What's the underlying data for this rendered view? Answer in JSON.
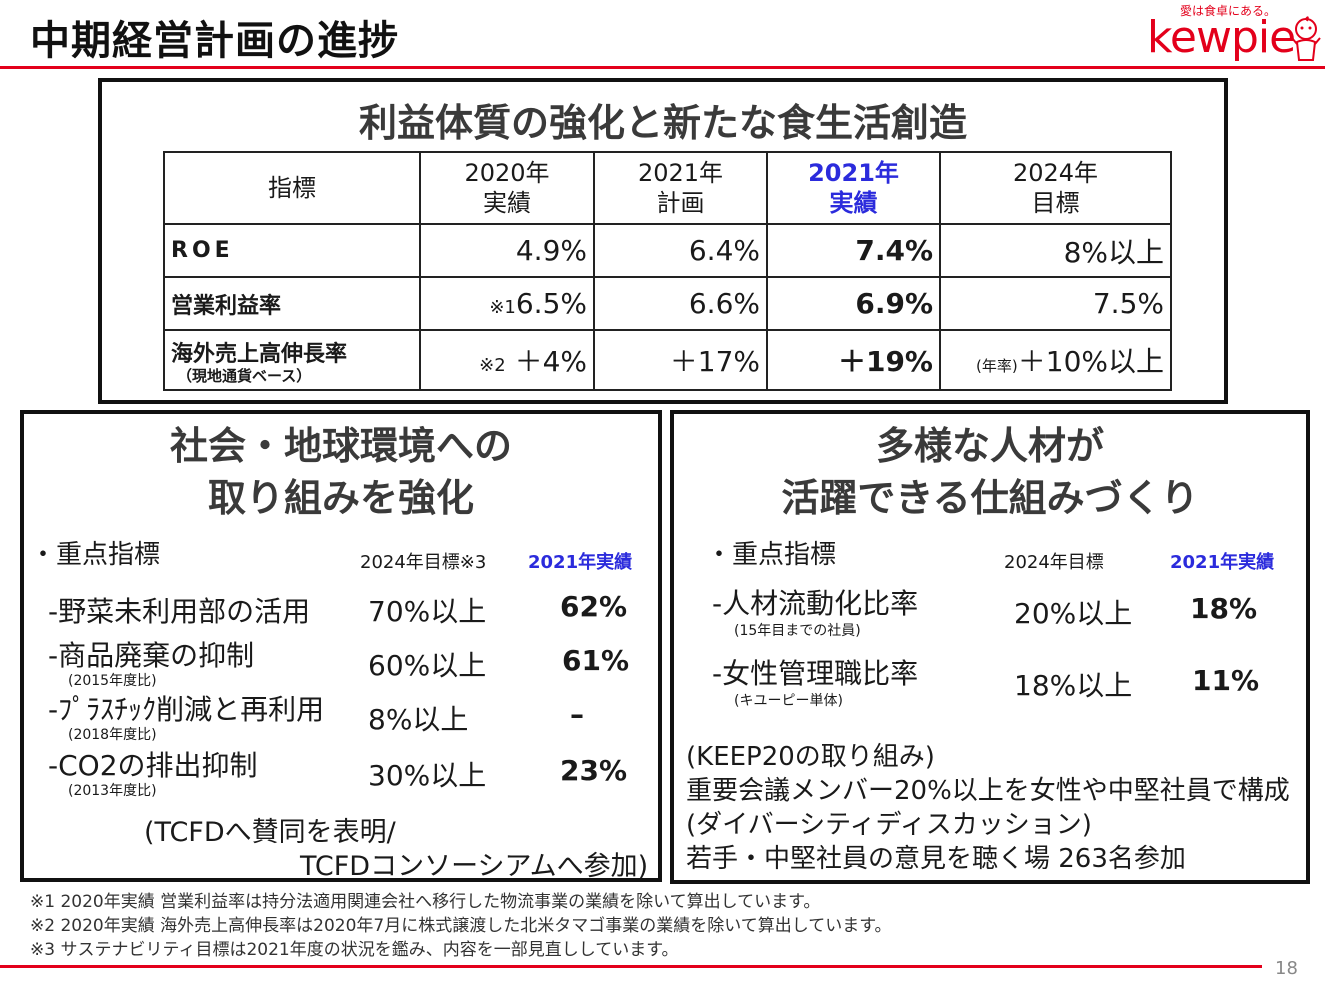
{
  "page_title": "中期経営計画の進捗",
  "logo": {
    "tagline": "愛は食卓にある。",
    "wordmark": "kewpie"
  },
  "top": {
    "heading": "利益体質の強化と新たな食生活創造",
    "headers": {
      "indicator": "指標",
      "c1_line1": "2020年",
      "c1_line2": "実績",
      "c2_line1": "2021年",
      "c2_line2": "計画",
      "c3_line1": "2021年",
      "c3_line2": "実績",
      "c4_line1": "2024年",
      "c4_line2": "目標"
    },
    "rows": [
      {
        "label": "ROE",
        "sublabel": "",
        "prefix": "",
        "v1": "4.9%",
        "v2": "6.4%",
        "v3": "7.4%",
        "v4_prefix": "",
        "v4": "8%以上"
      },
      {
        "label": "営業利益率",
        "sublabel": "",
        "prefix": "※1",
        "v1": "6.5%",
        "v2": "6.6%",
        "v3": "6.9%",
        "v4_prefix": "",
        "v4": "7.5%"
      },
      {
        "label": "海外売上高伸長率",
        "sublabel": "（現地通貨ベース）",
        "prefix": "※2",
        "v1": "＋4%",
        "v2": "＋17%",
        "v3": "＋19%",
        "v4_prefix": "(年率)",
        "v4": "＋10%以上"
      }
    ],
    "accent_color": "#2b2bdc"
  },
  "left": {
    "heading_line1": "社会・地球環境への",
    "heading_line2": "取り組みを強化",
    "bullet": "・重点指標",
    "col_target": "2024年目標※3",
    "col_actual": "2021年実績",
    "items": [
      {
        "label": "-野菜未利用部の活用",
        "note": "",
        "target": "70%以上",
        "actual": "62%"
      },
      {
        "label": "-商品廃棄の抑制",
        "note": "(2015年度比)",
        "target": "60%以上",
        "actual": "61%"
      },
      {
        "label": "-ﾌﾟﾗｽﾁｯｸ削減と再利用",
        "note": "(2018年度比)",
        "target": "8%以上",
        "actual": "–"
      },
      {
        "label": "-CO2の排出抑制",
        "note": "(2013年度比)",
        "target": "30%以上",
        "actual": "23%"
      }
    ],
    "tcfd_line1": "(TCFDへ賛同を表明/",
    "tcfd_line2": "TCFDコンソーシアムへ参加)"
  },
  "right": {
    "heading_line1": "多様な人材が",
    "heading_line2": "活躍できる仕組みづくり",
    "bullet": "・重点指標",
    "col_target": "2024年目標",
    "col_actual": "2021年実績",
    "items": [
      {
        "label": "-人材流動化比率",
        "note": "(15年目までの社員)",
        "target": "20%以上",
        "actual": "18%"
      },
      {
        "label": "-女性管理職比率",
        "note": "(キユーピー単体)",
        "target": "18%以上",
        "actual": "11%"
      }
    ],
    "keep_lines": [
      "(KEEP20の取り組み)",
      "重要会議メンバー20%以上を女性や中堅社員で構成",
      "(ダイバーシティディスカッション)",
      "若手・中堅社員の意見を聴く場 263名参加"
    ]
  },
  "footnotes": [
    "※1 2020年実績 営業利益率は持分法適用関連会社へ移行した物流事業の業績を除いて算出しています。",
    "※2 2020年実績 海外売上高伸長率は2020年7月に株式譲渡した北米タマゴ事業の業績を除いて算出しています。",
    "※3 サステナビリティ目標は2021年度の状況を鑑み、内容を一部見直ししています。"
  ],
  "page_number": "18",
  "brand_color": "#e3001b"
}
